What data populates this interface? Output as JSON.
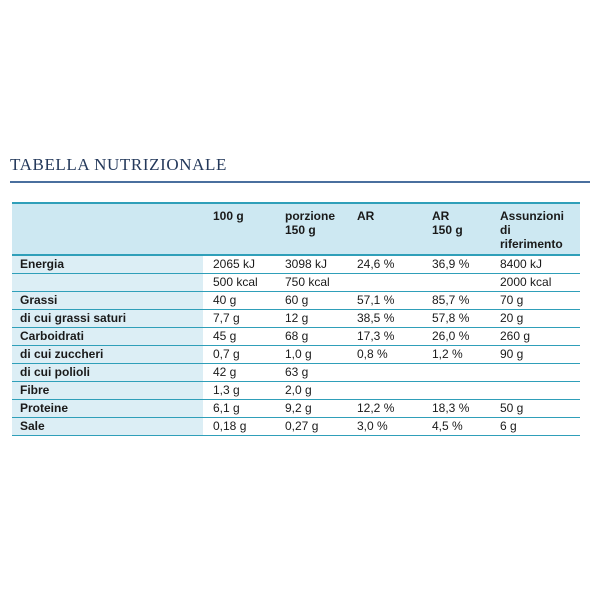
{
  "title": "TABELLA NUTRIZIONALE",
  "colors": {
    "title_text": "#24395b",
    "title_rule": "#4a6f9e",
    "table_line_teal": "#2f9fb9",
    "header_bg": "#cde8f2",
    "label_column_bg": "#dceef5",
    "body_text": "#1a1a1a",
    "page_bg": "#ffffff"
  },
  "table": {
    "columns": [
      "",
      "100 g",
      "porzione\n150 g",
      "AR",
      "AR\n150 g",
      "Assunzioni\ndi\nriferimento"
    ],
    "rows": [
      {
        "label": "Energia",
        "values": [
          "2065 kJ",
          "3098 kJ",
          "24,6 %",
          "36,9 %",
          "8400 kJ"
        ]
      },
      {
        "label": "",
        "values": [
          "500 kcal",
          "750 kcal",
          "",
          "",
          "2000 kcal"
        ]
      },
      {
        "label": "Grassi",
        "values": [
          "40 g",
          "60 g",
          "57,1 %",
          "85,7 %",
          "70 g"
        ]
      },
      {
        "label": "di cui grassi saturi",
        "values": [
          "7,7 g",
          "12 g",
          "38,5 %",
          "57,8 %",
          "20 g"
        ]
      },
      {
        "label": "Carboidrati",
        "values": [
          "45 g",
          "68 g",
          "17,3 %",
          "26,0 %",
          "260 g"
        ]
      },
      {
        "label": "di cui zuccheri",
        "values": [
          "0,7 g",
          "1,0 g",
          "0,8 %",
          "1,2 %",
          "90 g"
        ]
      },
      {
        "label": "di cui polioli",
        "values": [
          "42 g",
          "63 g",
          "",
          "",
          ""
        ]
      },
      {
        "label": "Fibre",
        "values": [
          "1,3 g",
          "2,0 g",
          "",
          "",
          ""
        ]
      },
      {
        "label": "Proteine",
        "values": [
          "6,1 g",
          "9,2 g",
          "12,2 %",
          "18,3 %",
          "50 g"
        ]
      },
      {
        "label": "Sale",
        "values": [
          "0,18 g",
          "0,27 g",
          "3,0 %",
          "4,5 %",
          "6 g"
        ]
      }
    ]
  }
}
